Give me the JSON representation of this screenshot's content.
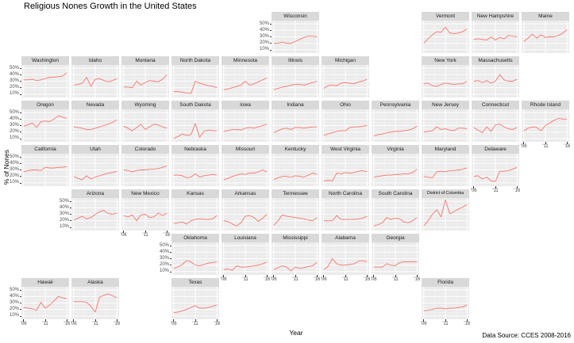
{
  "caption": "Data Source: CCES 2008-2016",
  "colors": {
    "line": "#F8766D",
    "panel_bg": "#EBEBEB",
    "strip_bg": "#D9D9D9",
    "gridline": "#FFFFFF",
    "tick_text": "#4D4D4D",
    "strip_text": "#1A1A1A"
  },
  "chart_data": {
    "type": "line",
    "title": "Religious Nones Growth in the United States",
    "xlabel": "Year",
    "ylabel": "% of Nones",
    "facet_layout": "us-state-geographic-grid",
    "x": [
      2006,
      2007,
      2008,
      2009,
      2010,
      2011,
      2012,
      2013,
      2014,
      2015,
      2016
    ],
    "x_domain": [
      2005.5,
      2016.5
    ],
    "y_domain": [
      5,
      55
    ],
    "x_ticks": [
      {
        "value": 2006,
        "label": "'06"
      },
      {
        "value": 2011,
        "label": "'11"
      },
      {
        "value": 2016,
        "label": "'16"
      }
    ],
    "y_ticks": [
      {
        "value": 50,
        "label": "50%"
      },
      {
        "value": 40,
        "label": "40%"
      },
      {
        "value": 30,
        "label": "30%"
      },
      {
        "value": 20,
        "label": "20%"
      },
      {
        "value": 10,
        "label": "10%"
      }
    ],
    "x_minor_gridlines": [
      2008.5,
      2013.5
    ],
    "y_minor_gridlines": [
      15,
      25,
      35,
      45
    ],
    "series": [
      {
        "name": "Wisconsin",
        "row": 1,
        "col": 6,
        "values": [
          20,
          20,
          22,
          20,
          20,
          23,
          26,
          29,
          31,
          31,
          30
        ]
      },
      {
        "name": "Vermont",
        "row": 1,
        "col": 9,
        "values": [
          20,
          27,
          33,
          38,
          37,
          45,
          36,
          35,
          36,
          38,
          42
        ]
      },
      {
        "name": "New Hampshire",
        "row": 1,
        "col": 10,
        "values": [
          26,
          27,
          26,
          25,
          30,
          25,
          29,
          27,
          32,
          31,
          30
        ]
      },
      {
        "name": "Maine",
        "row": 1,
        "col": 11,
        "values": [
          23,
          28,
          34,
          28,
          33,
          29,
          30,
          30,
          32,
          36,
          41
        ]
      },
      {
        "name": "Washington",
        "row": 2,
        "col": 1,
        "values": [
          32,
          32,
          33,
          31,
          32,
          34,
          36,
          36,
          37,
          38,
          43
        ]
      },
      {
        "name": "Idaho",
        "row": 2,
        "col": 2,
        "values": [
          24,
          25,
          27,
          36,
          22,
          33,
          34,
          31,
          29,
          31,
          34
        ]
      },
      {
        "name": "Montana",
        "row": 2,
        "col": 3,
        "values": [
          21,
          21,
          20,
          30,
          24,
          28,
          31,
          30,
          29,
          33,
          40
        ]
      },
      {
        "name": "North Dakota",
        "row": 2,
        "col": 4,
        "values": [
          14,
          14,
          13,
          12,
          11,
          30,
          27,
          25,
          23,
          22,
          20
        ]
      },
      {
        "name": "Minnesota",
        "row": 2,
        "col": 5,
        "values": [
          17,
          18,
          20,
          22,
          24,
          30,
          24,
          26,
          29,
          32,
          35
        ]
      },
      {
        "name": "Illinois",
        "row": 2,
        "col": 6,
        "values": [
          17,
          19,
          21,
          22,
          24,
          25,
          25,
          24,
          26,
          28,
          30
        ]
      },
      {
        "name": "Michigan",
        "row": 2,
        "col": 7,
        "values": [
          19,
          23,
          24,
          23,
          27,
          28,
          27,
          26,
          29,
          30,
          33
        ]
      },
      {
        "name": "New York",
        "row": 2,
        "col": 9,
        "values": [
          26,
          27,
          23,
          22,
          25,
          27,
          26,
          25,
          26,
          26,
          30
        ]
      },
      {
        "name": "Massachusetts",
        "row": 2,
        "col": 10,
        "values": [
          30,
          31,
          28,
          31,
          27,
          30,
          40,
          32,
          30,
          30,
          33
        ]
      },
      {
        "name": "Oregon",
        "row": 3,
        "col": 1,
        "values": [
          29,
          31,
          34,
          27,
          36,
          37,
          36,
          40,
          45,
          43,
          41
        ]
      },
      {
        "name": "Nevada",
        "row": 3,
        "col": 2,
        "values": [
          28,
          27,
          26,
          24,
          24,
          26,
          28,
          30,
          32,
          35,
          39
        ]
      },
      {
        "name": "Wyoming",
        "row": 3,
        "col": 3,
        "values": [
          29,
          26,
          22,
          27,
          32,
          24,
          28,
          32,
          31,
          28,
          26
        ]
      },
      {
        "name": "South Dakota",
        "row": 3,
        "col": 4,
        "values": [
          10,
          13,
          17,
          15,
          16,
          33,
          12,
          21,
          23,
          22,
          22
        ]
      },
      {
        "name": "Iowa",
        "row": 3,
        "col": 5,
        "values": [
          21,
          22,
          24,
          24,
          23,
          26,
          27,
          26,
          28,
          30,
          32
        ]
      },
      {
        "name": "Indiana",
        "row": 3,
        "col": 6,
        "values": [
          19,
          22,
          25,
          26,
          24,
          27,
          27,
          26,
          27,
          28,
          28
        ]
      },
      {
        "name": "Ohio",
        "row": 3,
        "col": 7,
        "values": [
          15,
          17,
          19,
          21,
          22,
          22,
          27,
          28,
          28,
          29,
          30
        ]
      },
      {
        "name": "Pennsylvania",
        "row": 3,
        "col": 8,
        "values": [
          14,
          16,
          17,
          19,
          20,
          21,
          21,
          22,
          23,
          25,
          29
        ]
      },
      {
        "name": "New Jersey",
        "row": 3,
        "col": 9,
        "values": [
          20,
          21,
          22,
          28,
          24,
          25,
          23,
          22,
          26,
          26,
          25
        ]
      },
      {
        "name": "Connecticut",
        "row": 3,
        "col": 10,
        "values": [
          27,
          23,
          19,
          28,
          21,
          31,
          32,
          28,
          25,
          24,
          27
        ]
      },
      {
        "name": "Rhode Island",
        "row": 3,
        "col": 11,
        "values": [
          22,
          26,
          28,
          27,
          22,
          30,
          34,
          38,
          41,
          40,
          40
        ]
      },
      {
        "name": "California",
        "row": 4,
        "col": 1,
        "values": [
          27,
          29,
          30,
          30,
          29,
          34,
          33,
          33,
          34,
          34,
          35
        ]
      },
      {
        "name": "Utah",
        "row": 4,
        "col": 2,
        "values": [
          20,
          17,
          15,
          21,
          16,
          19,
          21,
          23,
          25,
          26,
          28
        ]
      },
      {
        "name": "Colorado",
        "row": 4,
        "col": 3,
        "values": [
          30,
          29,
          27,
          29,
          30,
          30,
          31,
          31,
          32,
          34,
          36
        ]
      },
      {
        "name": "Nebraska",
        "row": 4,
        "col": 4,
        "values": [
          22,
          22,
          21,
          18,
          19,
          24,
          19,
          21,
          22,
          23,
          22
        ]
      },
      {
        "name": "Missouri",
        "row": 4,
        "col": 5,
        "values": [
          15,
          17,
          20,
          22,
          24,
          23,
          25,
          25,
          27,
          30,
          27
        ]
      },
      {
        "name": "Kentucky",
        "row": 4,
        "col": 6,
        "values": [
          15,
          18,
          20,
          20,
          19,
          21,
          20,
          19,
          22,
          25,
          23
        ]
      },
      {
        "name": "West Virginia",
        "row": 4,
        "col": 7,
        "values": [
          13,
          14,
          13,
          25,
          24,
          26,
          25,
          26,
          28,
          29,
          27
        ]
      },
      {
        "name": "Virginia",
        "row": 4,
        "col": 8,
        "values": [
          19,
          20,
          21,
          22,
          22,
          23,
          23,
          24,
          24,
          26,
          31
        ]
      },
      {
        "name": "Maryland",
        "row": 4,
        "col": 9,
        "values": [
          20,
          19,
          18,
          27,
          28,
          27,
          29,
          29,
          30,
          31,
          33
        ]
      },
      {
        "name": "Delaware",
        "row": 4,
        "col": 10,
        "values": [
          20,
          21,
          16,
          19,
          13,
          12,
          28,
          28,
          29,
          31,
          34
        ]
      },
      {
        "name": "Arizona",
        "row": 5,
        "col": 2,
        "values": [
          21,
          24,
          27,
          23,
          25,
          30,
          34,
          36,
          31,
          30,
          32
        ]
      },
      {
        "name": "New Mexico",
        "row": 5,
        "col": 3,
        "values": [
          28,
          26,
          29,
          20,
          29,
          30,
          25,
          26,
          32,
          28,
          32
        ]
      },
      {
        "name": "Kansas",
        "row": 5,
        "col": 4,
        "values": [
          16,
          17,
          18,
          15,
          20,
          22,
          23,
          22,
          22,
          23,
          28
        ]
      },
      {
        "name": "Arkansas",
        "row": 5,
        "col": 5,
        "values": [
          20,
          19,
          15,
          12,
          17,
          27,
          28,
          25,
          19,
          24,
          30
        ]
      },
      {
        "name": "Tennessee",
        "row": 5,
        "col": 6,
        "values": [
          13,
          20,
          29,
          27,
          26,
          25,
          24,
          23,
          21,
          20,
          25
        ]
      },
      {
        "name": "North Carolina",
        "row": 5,
        "col": 7,
        "values": [
          20,
          20,
          20,
          28,
          22,
          22,
          22,
          22,
          23,
          24,
          27
        ]
      },
      {
        "name": "South Carolina",
        "row": 5,
        "col": 8,
        "values": [
          12,
          14,
          17,
          25,
          22,
          24,
          23,
          18,
          17,
          20,
          25
        ]
      },
      {
        "name": "District of Columbia",
        "row": 5,
        "col": 9,
        "values": [
          12,
          20,
          30,
          37,
          26,
          52,
          31,
          34,
          38,
          41,
          45
        ]
      },
      {
        "name": "Oklahoma",
        "row": 6,
        "col": 4,
        "values": [
          15,
          17,
          21,
          27,
          25,
          20,
          19,
          21,
          23,
          24,
          25
        ]
      },
      {
        "name": "Louisiana",
        "row": 6,
        "col": 5,
        "values": [
          13,
          14,
          12,
          19,
          17,
          17,
          18,
          19,
          20,
          22,
          25
        ]
      },
      {
        "name": "Mississippi",
        "row": 6,
        "col": 6,
        "values": [
          13,
          16,
          19,
          17,
          11,
          17,
          15,
          16,
          18,
          19,
          24
        ]
      },
      {
        "name": "Alabama",
        "row": 6,
        "col": 7,
        "values": [
          13,
          18,
          30,
          22,
          20,
          20,
          21,
          22,
          26,
          27,
          25
        ]
      },
      {
        "name": "Georgia",
        "row": 6,
        "col": 8,
        "values": [
          17,
          17,
          17,
          22,
          20,
          19,
          24,
          25,
          25,
          25,
          25
        ]
      },
      {
        "name": "Hawaii",
        "row": 7,
        "col": 1,
        "values": [
          23,
          22,
          21,
          19,
          31,
          22,
          27,
          33,
          40,
          38,
          37
        ]
      },
      {
        "name": "Alaska",
        "row": 7,
        "col": 2,
        "values": [
          32,
          32,
          32,
          31,
          25,
          16,
          39,
          42,
          44,
          41,
          38
        ]
      },
      {
        "name": "Texas",
        "row": 7,
        "col": 4,
        "values": [
          15,
          16,
          18,
          20,
          23,
          26,
          22,
          22,
          23,
          25,
          27
        ]
      },
      {
        "name": "Florida",
        "row": 7,
        "col": 9,
        "values": [
          18,
          19,
          20,
          22,
          22,
          21,
          22,
          22,
          23,
          24,
          27
        ]
      }
    ]
  }
}
